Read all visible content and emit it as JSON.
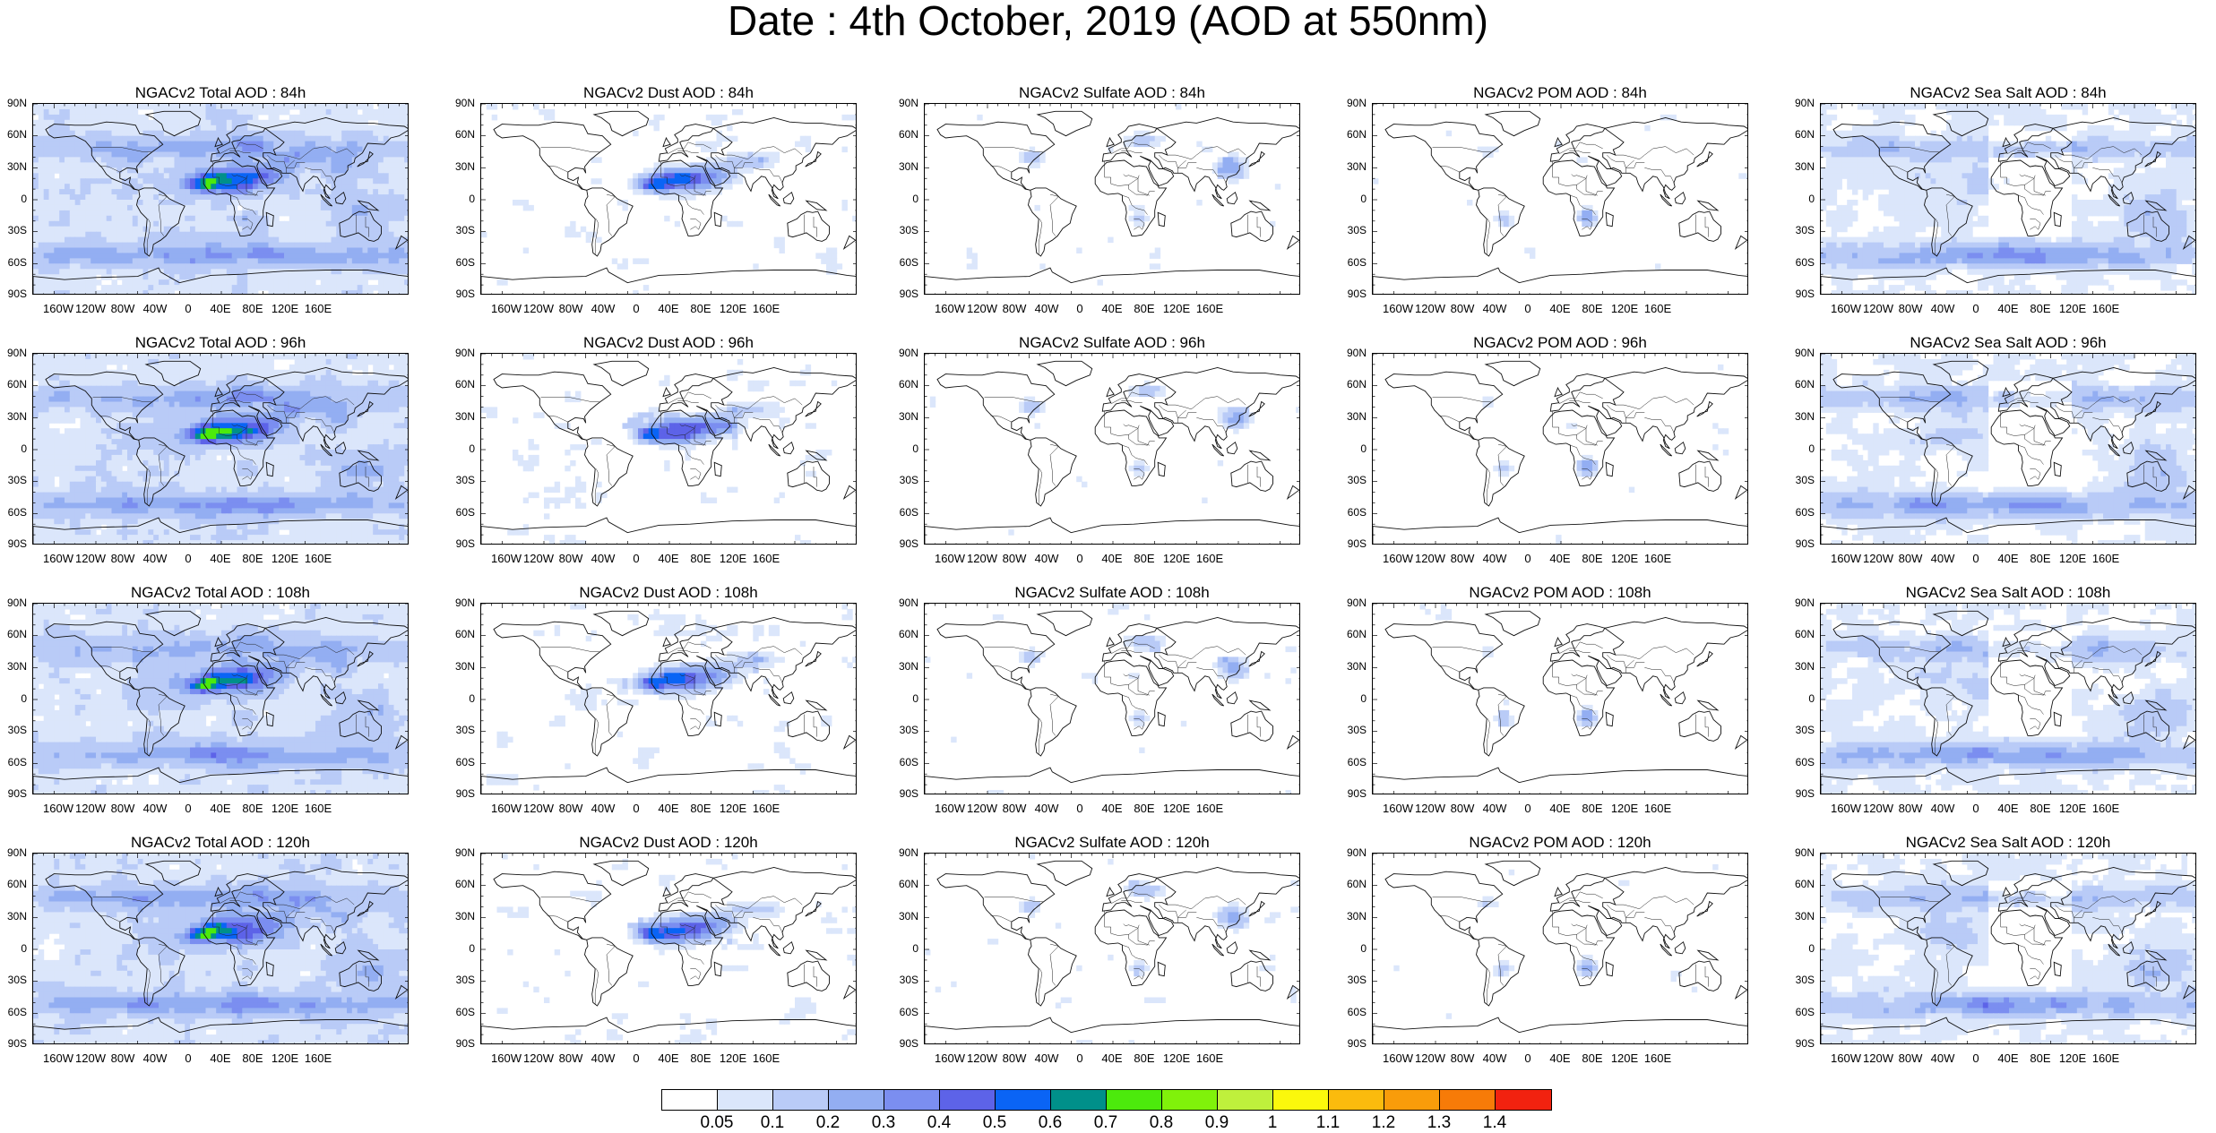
{
  "title": "Date : 4th October, 2019 (AOD at 550nm)",
  "lat_ticks": [
    "90N",
    "60N",
    "30N",
    "0",
    "30S",
    "60S",
    "90S"
  ],
  "lon_ticks": [
    "160W",
    "120W",
    "80W",
    "40W",
    "0",
    "40E",
    "80E",
    "120E",
    "160E"
  ],
  "columns": [
    {
      "key": "total",
      "plume": "full"
    },
    {
      "key": "dust",
      "plume": "dust"
    },
    {
      "key": "sulfate",
      "plume": "sulfate"
    },
    {
      "key": "pom",
      "plume": "pom"
    },
    {
      "key": "seasalt",
      "plume": "seasalt"
    }
  ],
  "panels": [
    [
      "NGACv2 Total AOD : 84h",
      "NGACv2 Dust AOD : 84h",
      "NGACv2 Sulfate AOD : 84h",
      "NGACv2 POM AOD : 84h",
      "NGACv2 Sea Salt AOD : 84h"
    ],
    [
      "NGACv2 Total AOD : 96h",
      "NGACv2 Dust AOD : 96h",
      "NGACv2 Sulfate AOD : 96h",
      "NGACv2 POM AOD : 96h",
      "NGACv2 Sea Salt AOD : 96h"
    ],
    [
      "NGACv2 Total AOD : 108h",
      "NGACv2 Dust AOD : 108h",
      "NGACv2 Sulfate AOD : 108h",
      "NGACv2 POM AOD : 108h",
      "NGACv2 Sea Salt AOD : 108h"
    ],
    [
      "NGACv2 Total AOD : 120h",
      "NGACv2 Dust AOD : 120h",
      "NGACv2 Sulfate AOD : 120h",
      "NGACv2 POM AOD : 120h",
      "NGACv2 Sea Salt  AOD : 120h"
    ]
  ],
  "colorbar": {
    "colors": [
      "#ffffff",
      "#dbe6fb",
      "#b9cbf7",
      "#93aef2",
      "#7b8ef0",
      "#5d63e8",
      "#0a64f5",
      "#00908a",
      "#4cea0c",
      "#80f20a",
      "#bff03c",
      "#fbf80c",
      "#fbbb0d",
      "#f99c0a",
      "#f77b08",
      "#f2220f"
    ],
    "labels": [
      "0.05",
      "0.1",
      "0.2",
      "0.3",
      "0.4",
      "0.5",
      "0.6",
      "0.7",
      "0.8",
      "0.9",
      "1",
      "1.1",
      "1.2",
      "1.3",
      "1.4"
    ]
  }
}
